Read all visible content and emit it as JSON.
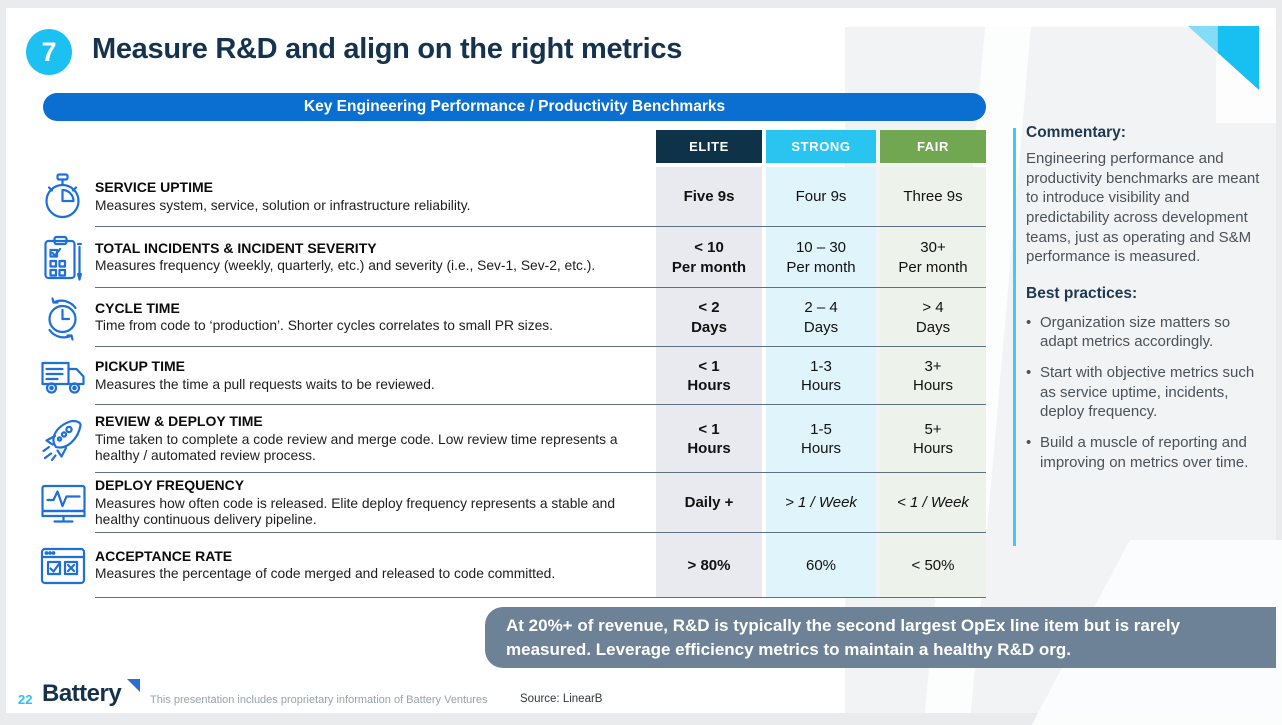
{
  "slide": {
    "number": "7",
    "title": "Measure R&D and align on the right metrics",
    "banner": "Key Engineering Performance / Productivity Benchmarks"
  },
  "table": {
    "columns": [
      "ELITE",
      "STRONG",
      "FAIR"
    ],
    "rows": [
      {
        "icon": "stopwatch-icon",
        "metric": "SERVICE UPTIME",
        "description": "Measures system, service, solution or infrastructure reliability.",
        "elite": "Five 9s",
        "strong": "Four 9s",
        "fair": "Three 9s"
      },
      {
        "icon": "clipboard-checklist-icon",
        "metric": "TOTAL INCIDENTS & INCIDENT SEVERITY",
        "description": "Measures frequency (weekly, quarterly, etc.) and severity (i.e., Sev-1, Sev-2, etc.).",
        "elite": "< 10\nPer month",
        "strong": "10 – 30\nPer month",
        "fair": "30+\nPer month"
      },
      {
        "icon": "cycle-clock-icon",
        "metric": "CYCLE TIME",
        "description": "Time from code to ‘production’. Shorter cycles correlates to small PR sizes.",
        "elite": "< 2\nDays",
        "strong": "2 – 4\nDays",
        "fair": "> 4\nDays"
      },
      {
        "icon": "truck-icon",
        "metric": "PICKUP TIME",
        "description": "Measures the time a pull requests waits to be reviewed.",
        "elite": "< 1\nHours",
        "strong": "1-3\nHours",
        "fair": "3+\nHours"
      },
      {
        "icon": "rocket-icon",
        "metric": "REVIEW  & DEPLOY TIME",
        "description": "Time taken to complete a code review and merge code. Low review time represents a healthy / automated review process.",
        "elite": "< 1\nHours",
        "strong": "1-5\nHours",
        "fair": "5+\nHours"
      },
      {
        "icon": "monitor-pulse-icon",
        "metric": "DEPLOY FREQUENCY",
        "description": "Measures how often code is released. Elite deploy frequency represents a stable and healthy continuous delivery pipeline.",
        "elite": "Daily +",
        "strong": "> 1 / Week",
        "fair": "< 1 / Week",
        "italic_values": true
      },
      {
        "icon": "browser-check-icon",
        "metric": "ACCEPTANCE RATE",
        "description": "Measures the percentage of code merged and released to code committed.",
        "elite": "> 80%",
        "strong": "60%",
        "fair": "< 50%"
      }
    ]
  },
  "sidebar": {
    "commentary_heading": "Commentary:",
    "commentary": "Engineering performance and productivity benchmarks are meant to introduce visibility and predictability across development teams, just as operating and S&M performance is measured.",
    "best_practices_heading": "Best practices:",
    "bullets": [
      "Organization size matters so adapt metrics accordingly.",
      "Start with objective metrics such as service uptime, incidents, deploy frequency.",
      "Build a muscle of reporting and improving on metrics over time."
    ]
  },
  "callout": "At 20%+ of revenue, R&D is typically the second largest OpEx line item but is rarely measured. Leverage efficiency metrics to maintain a healthy R&D org.",
  "footer": {
    "page_number": "22",
    "brand": "Battery",
    "disclaimer": "This presentation includes proprietary information of Battery Ventures",
    "source": "Source: LinearB"
  },
  "colors": {
    "accent_cyan": "#18C0F1",
    "banner_blue": "#0A6FD1",
    "title_navy": "#15334E",
    "elite_header": "#0E3349",
    "strong_header": "#29C4F0",
    "fair_header": "#71A751",
    "elite_cell": "#E8EAEF",
    "strong_cell": "#E0F4FC",
    "fair_cell": "#EDF2EA",
    "icon_blue": "#1E6FD9",
    "callout_bg": "#6D8296",
    "panel_gray": "#F2F3F5"
  }
}
